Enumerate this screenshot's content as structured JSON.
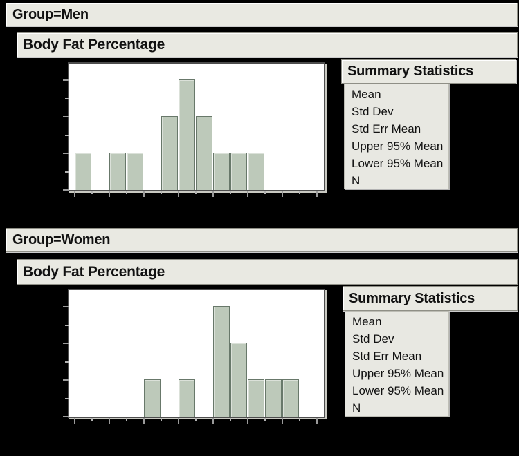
{
  "colors": {
    "background": "#000000",
    "panel_fill": "#e9e9e2",
    "list_fill": "#e8e8e2",
    "bar_fill": "#bdc9ba",
    "bar_stroke": "#68786a",
    "plot_background": "#ffffff",
    "frame_stroke": "#4d4d4d",
    "tick_color": "#9a9a9a",
    "text_color": "#111111"
  },
  "sections": [
    {
      "group_label": "Group=Men",
      "panel_title": "Body Fat Percentage",
      "summary": {
        "title": "Summary Statistics",
        "rows": [
          "Mean",
          "Std Dev",
          "Std Err Mean",
          "Upper 95% Mean",
          "Lower 95% Mean",
          "N"
        ]
      }
    },
    {
      "group_label": "Group=Women",
      "panel_title": "Body Fat Percentage",
      "summary": {
        "title": "Summary Statistics",
        "rows": [
          "Mean",
          "Std Dev",
          "Std Err Mean",
          "Upper 95% Mean",
          "Lower 95% Mean",
          "N"
        ]
      }
    }
  ],
  "chart_data": [
    {
      "type": "bar",
      "subtype": "histogram",
      "group": "Men",
      "title": "Body Fat Percentage",
      "bin_width": 2.5,
      "bins": [
        {
          "start": 0,
          "count": 1
        },
        {
          "start": 5,
          "count": 1
        },
        {
          "start": 7.5,
          "count": 1
        },
        {
          "start": 12.5,
          "count": 2
        },
        {
          "start": 15,
          "count": 3
        },
        {
          "start": 17.5,
          "count": 2
        },
        {
          "start": 20,
          "count": 1
        },
        {
          "start": 22.5,
          "count": 1
        },
        {
          "start": 25,
          "count": 1
        }
      ],
      "n_total": 13,
      "x_tick_values": [
        0,
        5,
        10,
        15,
        20,
        25,
        30,
        35
      ],
      "x_tick_labels_visible": false,
      "y_tick_step": 0.5,
      "ylim": [
        0,
        3.45
      ],
      "grid": false,
      "legend": false
    },
    {
      "type": "bar",
      "subtype": "histogram",
      "group": "Women",
      "title": "Body Fat Percentage",
      "bin_width": 2.5,
      "bins": [
        {
          "start": 10,
          "count": 1
        },
        {
          "start": 15,
          "count": 1
        },
        {
          "start": 20,
          "count": 3
        },
        {
          "start": 22.5,
          "count": 2
        },
        {
          "start": 25,
          "count": 1
        },
        {
          "start": 27.5,
          "count": 1
        },
        {
          "start": 30,
          "count": 1
        }
      ],
      "n_total": 10,
      "x_tick_values": [
        0,
        5,
        10,
        15,
        20,
        25,
        30,
        35
      ],
      "x_tick_labels_visible": false,
      "y_tick_step": 0.5,
      "ylim": [
        0,
        3.45
      ],
      "grid": false,
      "legend": false
    }
  ]
}
